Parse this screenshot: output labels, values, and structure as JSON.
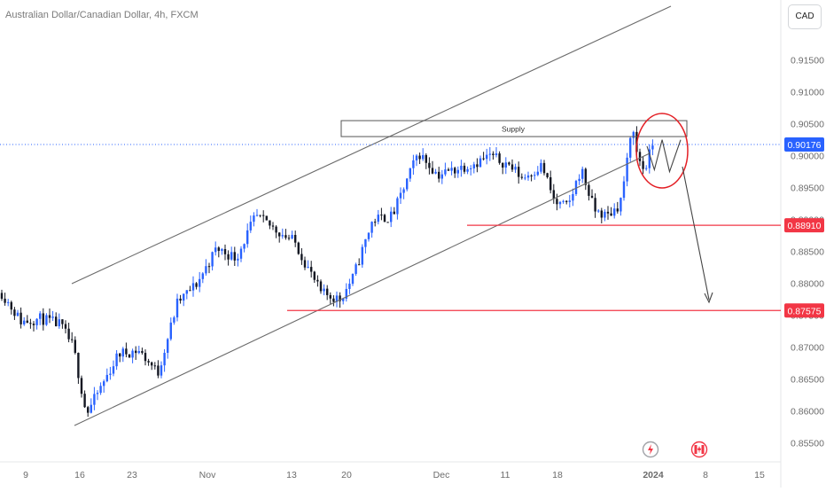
{
  "header": {
    "title": "Australian Dollar/Canadian Dollar, 4h, FXCM",
    "currency_button": "CAD"
  },
  "icons": {
    "event_icon": "lightning-bolt-icon",
    "flag_icon": "canada-flag-icon"
  },
  "colors": {
    "up": "#2962ff",
    "down": "#131722",
    "level": "#f23645",
    "last_price": "#2962ff",
    "channel": "#6b6b6b"
  },
  "chart_data": {
    "type": "candlestick",
    "symbol": "AUDCAD",
    "timeframe": "4h",
    "y_ticks": [
      0.915,
      0.91,
      0.905,
      0.9,
      0.895,
      0.89,
      0.885,
      0.88,
      0.875,
      0.87,
      0.865,
      0.86,
      0.855
    ],
    "y_tick_labels": [
      "0.91500",
      "0.91000",
      "0.90500",
      "0.90000",
      "0.89500",
      "0.89000",
      "0.88500",
      "0.88000",
      "0.87500",
      "0.87000",
      "0.86500",
      "0.86000",
      "0.85500"
    ],
    "x_ticks": [
      "9",
      "16",
      "23",
      "Nov",
      "13",
      "20",
      "Dec",
      "11",
      "18",
      "2024",
      "8",
      "15"
    ],
    "ylim": [
      0.8534,
      0.9207
    ],
    "last_price": {
      "value": 0.90176,
      "label": "0.90176"
    },
    "levels": [
      {
        "value": 0.8891,
        "label": "0.88910"
      },
      {
        "value": 0.87575,
        "label": "0.87575"
      }
    ],
    "supply_zone": {
      "label": "Supply",
      "top": 0.9055,
      "bottom": 0.903
    },
    "path_points": [
      [
        0.0,
        0.8785
      ],
      [
        0.03,
        0.874
      ],
      [
        0.06,
        0.8745
      ],
      [
        0.09,
        0.8735
      ],
      [
        0.11,
        0.87
      ],
      [
        0.13,
        0.8595
      ],
      [
        0.18,
        0.869
      ],
      [
        0.21,
        0.8695
      ],
      [
        0.24,
        0.866
      ],
      [
        0.27,
        0.877
      ],
      [
        0.3,
        0.88
      ],
      [
        0.33,
        0.8855
      ],
      [
        0.36,
        0.884
      ],
      [
        0.39,
        0.8905
      ],
      [
        0.42,
        0.8885
      ],
      [
        0.45,
        0.8865
      ],
      [
        0.49,
        0.8785
      ],
      [
        0.52,
        0.8775
      ],
      [
        0.54,
        0.881
      ],
      [
        0.57,
        0.89
      ],
      [
        0.6,
        0.8905
      ],
      [
        0.62,
        0.8955
      ],
      [
        0.64,
        0.9005
      ],
      [
        0.67,
        0.897
      ],
      [
        0.7,
        0.898
      ],
      [
        0.73,
        0.899
      ],
      [
        0.75,
        0.9
      ],
      [
        0.78,
        0.8985
      ],
      [
        0.8,
        0.8965
      ],
      [
        0.83,
        0.8985
      ],
      [
        0.85,
        0.8925
      ],
      [
        0.87,
        0.892
      ],
      [
        0.89,
        0.898
      ],
      [
        0.91,
        0.8915
      ],
      [
        0.93,
        0.8905
      ],
      [
        0.95,
        0.8925
      ],
      [
        0.96,
        0.8985
      ],
      [
        0.97,
        0.905
      ],
      [
        0.975,
        0.9005
      ],
      [
        0.985,
        0.898
      ],
      [
        0.99,
        0.8985
      ],
      [
        1.0,
        0.9017
      ]
    ],
    "projection": [
      [
        0.0,
        0.9015
      ],
      [
        0.22,
        0.8978
      ],
      [
        0.45,
        0.9025
      ],
      [
        0.67,
        0.8975
      ],
      [
        1.0,
        0.9025
      ]
    ]
  }
}
